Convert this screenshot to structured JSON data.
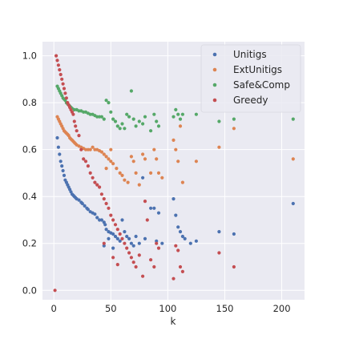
{
  "chart_data": {
    "type": "scatter",
    "xlabel": "k",
    "ylabel": "",
    "xlim": [
      -10,
      220
    ],
    "ylim": [
      -0.04,
      1.06
    ],
    "xticks": [
      0,
      50,
      100,
      150,
      200
    ],
    "yticks": [
      0.0,
      0.2,
      0.4,
      0.6,
      0.8,
      1.0
    ],
    "xtick_labels": [
      "0",
      "50",
      "100",
      "150",
      "200"
    ],
    "ytick_labels": [
      "0.0",
      "0.2",
      "0.4",
      "0.6",
      "0.8",
      "1.0"
    ],
    "grid": true,
    "legend_position": "top-right",
    "series": [
      {
        "name": "Unitigs",
        "color": "#4c72b0",
        "points": [
          [
            3,
            0.65
          ],
          [
            4,
            0.61
          ],
          [
            5,
            0.58
          ],
          [
            6,
            0.55
          ],
          [
            7,
            0.53
          ],
          [
            8,
            0.51
          ],
          [
            9,
            0.49
          ],
          [
            10,
            0.47
          ],
          [
            11,
            0.46
          ],
          [
            12,
            0.45
          ],
          [
            13,
            0.44
          ],
          [
            14,
            0.43
          ],
          [
            15,
            0.42
          ],
          [
            16,
            0.41
          ],
          [
            17,
            0.405
          ],
          [
            18,
            0.4
          ],
          [
            19,
            0.395
          ],
          [
            20,
            0.39
          ],
          [
            22,
            0.385
          ],
          [
            24,
            0.375
          ],
          [
            25,
            0.37
          ],
          [
            27,
            0.36
          ],
          [
            29,
            0.35
          ],
          [
            30,
            0.345
          ],
          [
            32,
            0.335
          ],
          [
            34,
            0.33
          ],
          [
            36,
            0.325
          ],
          [
            38,
            0.31
          ],
          [
            40,
            0.3
          ],
          [
            42,
            0.3
          ],
          [
            44,
            0.29
          ],
          [
            45,
            0.28
          ],
          [
            46,
            0.26
          ],
          [
            48,
            0.25
          ],
          [
            50,
            0.245
          ],
          [
            52,
            0.24
          ],
          [
            54,
            0.23
          ],
          [
            56,
            0.22
          ],
          [
            58,
            0.21
          ],
          [
            60,
            0.3
          ],
          [
            62,
            0.25
          ],
          [
            64,
            0.23
          ],
          [
            66,
            0.22
          ],
          [
            68,
            0.2
          ],
          [
            70,
            0.19
          ],
          [
            72,
            0.23
          ],
          [
            75,
            0.2
          ],
          [
            78,
            0.48
          ],
          [
            80,
            0.22
          ],
          [
            85,
            0.35
          ],
          [
            88,
            0.35
          ],
          [
            90,
            0.21
          ],
          [
            92,
            0.33
          ],
          [
            95,
            0.2
          ],
          [
            105,
            0.39
          ],
          [
            107,
            0.32
          ],
          [
            109,
            0.27
          ],
          [
            111,
            0.25
          ],
          [
            113,
            0.23
          ],
          [
            115,
            0.22
          ],
          [
            120,
            0.2
          ],
          [
            125,
            0.21
          ],
          [
            145,
            0.25
          ],
          [
            158,
            0.24
          ],
          [
            210,
            0.37
          ],
          [
            48,
            0.22
          ],
          [
            52,
            0.18
          ],
          [
            44,
            0.19
          ]
        ]
      },
      {
        "name": "ExtUnitigs",
        "color": "#dd8452",
        "points": [
          [
            3,
            0.74
          ],
          [
            4,
            0.73
          ],
          [
            5,
            0.72
          ],
          [
            6,
            0.71
          ],
          [
            7,
            0.7
          ],
          [
            8,
            0.69
          ],
          [
            9,
            0.68
          ],
          [
            10,
            0.675
          ],
          [
            11,
            0.67
          ],
          [
            12,
            0.665
          ],
          [
            13,
            0.66
          ],
          [
            14,
            0.65
          ],
          [
            15,
            0.645
          ],
          [
            16,
            0.64
          ],
          [
            17,
            0.635
          ],
          [
            18,
            0.63
          ],
          [
            19,
            0.625
          ],
          [
            20,
            0.62
          ],
          [
            22,
            0.615
          ],
          [
            24,
            0.61
          ],
          [
            26,
            0.605
          ],
          [
            28,
            0.6
          ],
          [
            30,
            0.6
          ],
          [
            32,
            0.6
          ],
          [
            34,
            0.61
          ],
          [
            36,
            0.6
          ],
          [
            38,
            0.6
          ],
          [
            40,
            0.595
          ],
          [
            42,
            0.59
          ],
          [
            44,
            0.58
          ],
          [
            46,
            0.57
          ],
          [
            48,
            0.56
          ],
          [
            50,
            0.55
          ],
          [
            52,
            0.54
          ],
          [
            55,
            0.52
          ],
          [
            58,
            0.5
          ],
          [
            60,
            0.49
          ],
          [
            62,
            0.47
          ],
          [
            65,
            0.46
          ],
          [
            68,
            0.57
          ],
          [
            70,
            0.55
          ],
          [
            72,
            0.5
          ],
          [
            75,
            0.45
          ],
          [
            78,
            0.58
          ],
          [
            80,
            0.56
          ],
          [
            85,
            0.5
          ],
          [
            88,
            0.6
          ],
          [
            90,
            0.56
          ],
          [
            92,
            0.5
          ],
          [
            95,
            0.48
          ],
          [
            105,
            0.64
          ],
          [
            107,
            0.6
          ],
          [
            109,
            0.55
          ],
          [
            111,
            0.7
          ],
          [
            113,
            0.46
          ],
          [
            125,
            0.55
          ],
          [
            145,
            0.61
          ],
          [
            158,
            0.69
          ],
          [
            210,
            0.56
          ],
          [
            46,
            0.52
          ],
          [
            50,
            0.6
          ]
        ]
      },
      {
        "name": "Safe&Comp",
        "color": "#55a868",
        "points": [
          [
            3,
            0.87
          ],
          [
            4,
            0.86
          ],
          [
            5,
            0.85
          ],
          [
            6,
            0.84
          ],
          [
            7,
            0.83
          ],
          [
            8,
            0.82
          ],
          [
            9,
            0.815
          ],
          [
            10,
            0.81
          ],
          [
            11,
            0.8
          ],
          [
            12,
            0.795
          ],
          [
            13,
            0.79
          ],
          [
            14,
            0.785
          ],
          [
            15,
            0.78
          ],
          [
            16,
            0.775
          ],
          [
            18,
            0.77
          ],
          [
            20,
            0.77
          ],
          [
            22,
            0.765
          ],
          [
            24,
            0.765
          ],
          [
            26,
            0.76
          ],
          [
            28,
            0.76
          ],
          [
            30,
            0.755
          ],
          [
            32,
            0.75
          ],
          [
            34,
            0.75
          ],
          [
            36,
            0.745
          ],
          [
            38,
            0.74
          ],
          [
            40,
            0.74
          ],
          [
            42,
            0.74
          ],
          [
            44,
            0.73
          ],
          [
            46,
            0.81
          ],
          [
            48,
            0.8
          ],
          [
            50,
            0.76
          ],
          [
            52,
            0.73
          ],
          [
            54,
            0.72
          ],
          [
            56,
            0.7
          ],
          [
            58,
            0.69
          ],
          [
            60,
            0.71
          ],
          [
            62,
            0.69
          ],
          [
            64,
            0.75
          ],
          [
            66,
            0.74
          ],
          [
            68,
            0.85
          ],
          [
            70,
            0.73
          ],
          [
            72,
            0.7
          ],
          [
            75,
            0.72
          ],
          [
            78,
            0.71
          ],
          [
            80,
            0.74
          ],
          [
            85,
            0.68
          ],
          [
            88,
            0.75
          ],
          [
            90,
            0.72
          ],
          [
            92,
            0.7
          ],
          [
            105,
            0.74
          ],
          [
            107,
            0.77
          ],
          [
            109,
            0.75
          ],
          [
            111,
            0.73
          ],
          [
            113,
            0.75
          ],
          [
            125,
            0.75
          ],
          [
            145,
            0.72
          ],
          [
            158,
            0.73
          ],
          [
            210,
            0.73
          ]
        ]
      },
      {
        "name": "Greedy",
        "color": "#c44e52",
        "points": [
          [
            1,
            0.0
          ],
          [
            2,
            1.0
          ],
          [
            3,
            0.98
          ],
          [
            4,
            0.96
          ],
          [
            5,
            0.94
          ],
          [
            6,
            0.92
          ],
          [
            7,
            0.9
          ],
          [
            8,
            0.88
          ],
          [
            9,
            0.86
          ],
          [
            10,
            0.84
          ],
          [
            11,
            0.82
          ],
          [
            12,
            0.8
          ],
          [
            13,
            0.79
          ],
          [
            14,
            0.78
          ],
          [
            15,
            0.77
          ],
          [
            16,
            0.76
          ],
          [
            17,
            0.75
          ],
          [
            18,
            0.72
          ],
          [
            19,
            0.7
          ],
          [
            20,
            0.68
          ],
          [
            22,
            0.66
          ],
          [
            24,
            0.6
          ],
          [
            26,
            0.56
          ],
          [
            28,
            0.55
          ],
          [
            30,
            0.53
          ],
          [
            32,
            0.5
          ],
          [
            34,
            0.48
          ],
          [
            36,
            0.46
          ],
          [
            38,
            0.45
          ],
          [
            40,
            0.44
          ],
          [
            42,
            0.41
          ],
          [
            44,
            0.39
          ],
          [
            46,
            0.37
          ],
          [
            48,
            0.35
          ],
          [
            50,
            0.32
          ],
          [
            52,
            0.3
          ],
          [
            54,
            0.28
          ],
          [
            56,
            0.26
          ],
          [
            58,
            0.24
          ],
          [
            60,
            0.22
          ],
          [
            62,
            0.2
          ],
          [
            64,
            0.18
          ],
          [
            66,
            0.16
          ],
          [
            68,
            0.14
          ],
          [
            70,
            0.12
          ],
          [
            72,
            0.1
          ],
          [
            75,
            0.15
          ],
          [
            78,
            0.06
          ],
          [
            80,
            0.38
          ],
          [
            82,
            0.3
          ],
          [
            85,
            0.13
          ],
          [
            88,
            0.1
          ],
          [
            90,
            0.2
          ],
          [
            92,
            0.18
          ],
          [
            105,
            0.05
          ],
          [
            107,
            0.19
          ],
          [
            109,
            0.17
          ],
          [
            111,
            0.1
          ],
          [
            113,
            0.08
          ],
          [
            145,
            0.16
          ],
          [
            158,
            0.1
          ],
          [
            44,
            0.2
          ],
          [
            52,
            0.14
          ],
          [
            56,
            0.11
          ]
        ]
      }
    ]
  }
}
